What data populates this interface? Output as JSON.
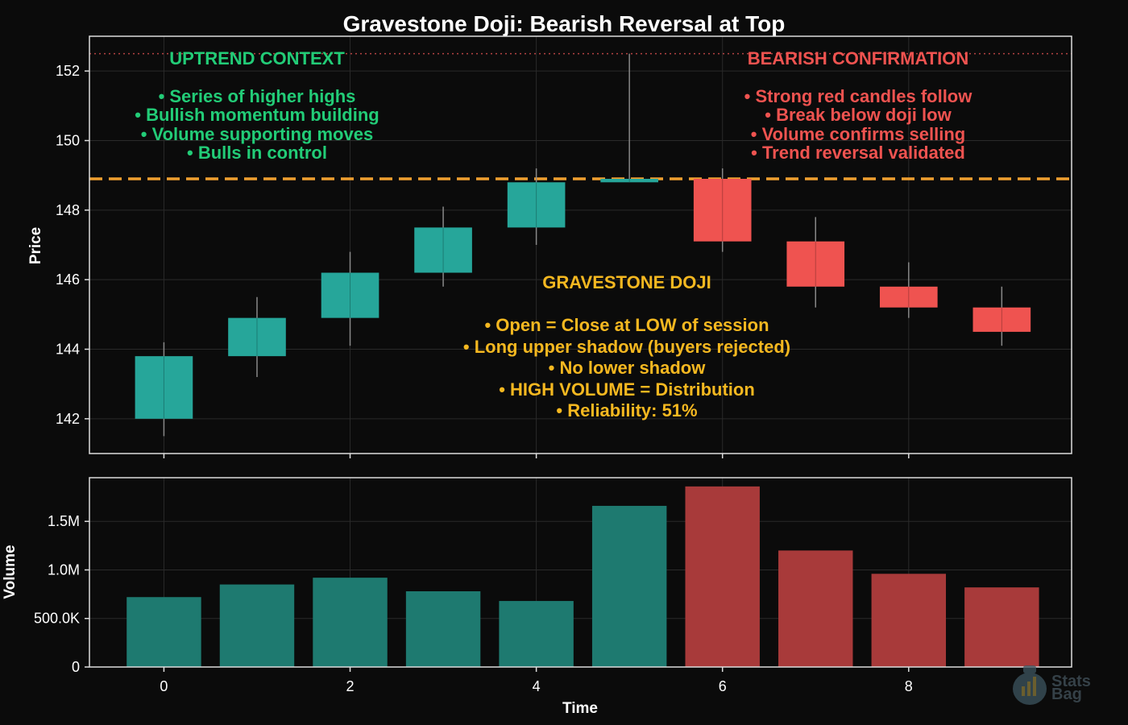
{
  "chart_data": {
    "type": "candlestick",
    "title": "Gravestone Doji: Bearish Reversal at Top",
    "price_panel": {
      "ylabel": "Price",
      "ylim": [
        141,
        153
      ],
      "yticks": [
        142,
        144,
        146,
        148,
        150,
        152
      ],
      "candles": [
        {
          "x": 0,
          "open": 142.0,
          "high": 144.2,
          "low": 141.5,
          "close": 143.8
        },
        {
          "x": 1,
          "open": 143.8,
          "high": 145.5,
          "low": 143.2,
          "close": 144.9
        },
        {
          "x": 2,
          "open": 144.9,
          "high": 146.8,
          "low": 144.1,
          "close": 146.2
        },
        {
          "x": 3,
          "open": 146.2,
          "high": 148.1,
          "low": 145.8,
          "close": 147.5
        },
        {
          "x": 4,
          "open": 147.5,
          "high": 149.2,
          "low": 147.0,
          "close": 148.8
        },
        {
          "x": 5,
          "open": 148.9,
          "high": 152.5,
          "low": 148.8,
          "close": 148.8
        },
        {
          "x": 6,
          "open": 148.9,
          "high": 149.2,
          "low": 146.8,
          "close": 147.1
        },
        {
          "x": 7,
          "open": 147.1,
          "high": 147.8,
          "low": 145.2,
          "close": 145.8
        },
        {
          "x": 8,
          "open": 145.8,
          "high": 146.5,
          "low": 144.9,
          "close": 145.2
        },
        {
          "x": 9,
          "open": 145.2,
          "high": 145.8,
          "low": 144.1,
          "close": 144.5
        }
      ],
      "reference_lines": [
        {
          "value": 148.9,
          "style": "dashed",
          "color": "#f0a030"
        },
        {
          "value": 152.5,
          "style": "dotted",
          "color": "#e05050"
        }
      ]
    },
    "volume_panel": {
      "ylabel": "Volume",
      "ylim": [
        0,
        1950000
      ],
      "yticks": [
        0,
        500000,
        1000000,
        1500000
      ],
      "ytick_labels": [
        "0",
        "500.0K",
        "1.0M",
        "1.5M"
      ],
      "values": [
        720000,
        850000,
        920000,
        780000,
        680000,
        1660000,
        1860000,
        1200000,
        960000,
        820000
      ]
    },
    "xlabel": "Time",
    "xlim": [
      -0.8,
      9.75
    ],
    "xticks": [
      0,
      2,
      4,
      6,
      8
    ],
    "colors": {
      "up": "#26a69a",
      "down": "#ef5350",
      "vol_up": "#1e7a70",
      "vol_down": "#a83a3a",
      "frame": "#dddddd",
      "grid": "#2a2a2a",
      "uptrend_text": "#22cc77",
      "bearish_text": "#ef5350",
      "doji_text": "#f5b820"
    }
  },
  "annotations": {
    "uptrend": {
      "title": "UPTREND CONTEXT",
      "lines": [
        "• Series of higher highs",
        "• Bullish momentum building",
        "• Volume supporting moves",
        "• Bulls in control"
      ]
    },
    "bearish": {
      "title": "BEARISH CONFIRMATION",
      "lines": [
        "• Strong red candles follow",
        "• Break below doji low",
        "• Volume confirms selling",
        "• Trend reversal validated"
      ]
    },
    "doji": {
      "title": "GRAVESTONE DOJI",
      "lines": [
        "• Open = Close at LOW of session",
        "• Long upper shadow (buyers rejected)",
        "• No lower shadow",
        "• HIGH VOLUME = Distribution",
        "• Reliability: 51%"
      ]
    }
  },
  "watermark": {
    "line1": "Stats",
    "line2": "Bag",
    "icon": "money-bag-icon"
  }
}
